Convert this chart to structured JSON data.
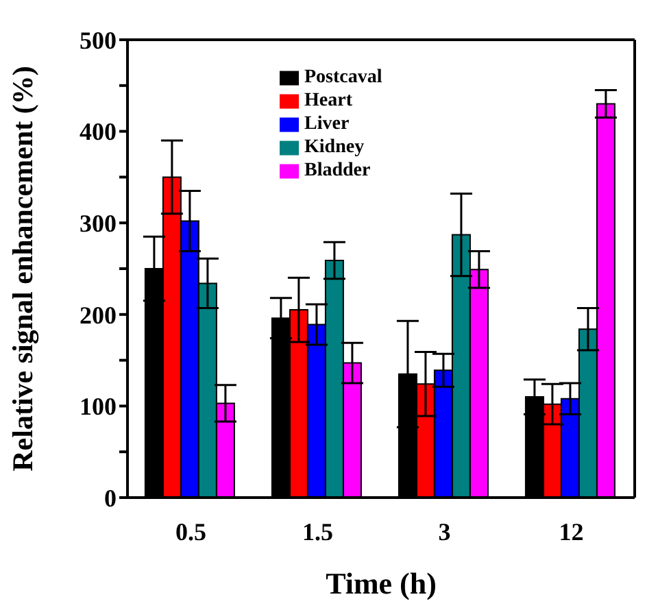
{
  "chart_data": {
    "type": "bar",
    "xlabel": "Time (h)",
    "ylabel": "Relative signal enhancement (%)",
    "categories": [
      "0.5",
      "1.5",
      "3",
      "12"
    ],
    "series": [
      {
        "name": "Postcaval",
        "color": "#000000",
        "values": [
          250,
          196,
          135,
          110
        ],
        "errors": [
          35,
          22,
          58,
          19
        ]
      },
      {
        "name": "Heart",
        "color": "#ff0000",
        "values": [
          350,
          205,
          124,
          102
        ],
        "errors": [
          40,
          35,
          35,
          22
        ]
      },
      {
        "name": "Liver",
        "color": "#0000ff",
        "values": [
          302,
          189,
          139,
          108
        ],
        "errors": [
          33,
          22,
          18,
          17
        ]
      },
      {
        "name": "Kidney",
        "color": "#008080",
        "values": [
          234,
          259,
          287,
          184
        ],
        "errors": [
          27,
          20,
          45,
          23
        ]
      },
      {
        "name": "Bladder",
        "color": "#ff00ff",
        "values": [
          103,
          147,
          249,
          430
        ],
        "errors": [
          20,
          22,
          20,
          15
        ]
      }
    ],
    "ylim": [
      0,
      500
    ],
    "yticks": [
      0,
      {
        "value": 50,
        "label": null
      },
      100,
      {
        "value": 150,
        "label": null
      },
      200,
      {
        "value": 250,
        "label": null
      },
      300,
      {
        "value": 350,
        "label": null
      },
      400,
      {
        "value": 450,
        "label": null
      },
      500
    ],
    "legend": "top",
    "grid": false
  }
}
